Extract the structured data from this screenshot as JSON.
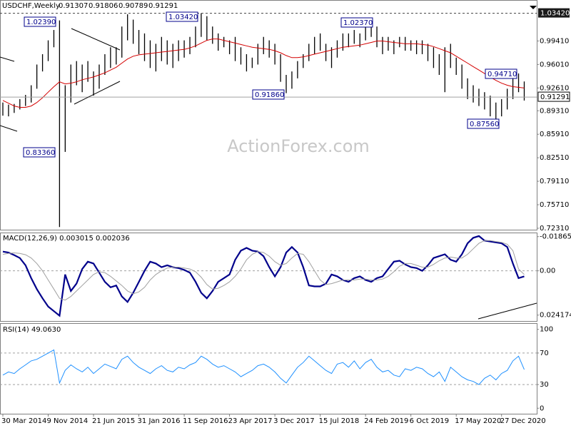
{
  "chart_data": [
    {
      "type": "ohlc",
      "title": "USDCHF,Weekly",
      "ohlc": [
        0.91307,
        0.91806,
        0.90789,
        0.91291
      ],
      "watermark": "ActionForex.com",
      "categories": [
        "30 Mar 2014",
        null,
        null,
        null,
        null,
        null,
        null,
        null,
        "9 Nov 2014",
        null,
        null,
        null,
        null,
        null,
        null,
        null,
        "21 Jun 2015",
        null,
        null,
        null,
        null,
        null,
        null,
        null,
        "31 Jan 2016",
        null,
        null,
        null,
        null,
        null,
        null,
        null,
        "11 Sep 2016",
        null,
        null,
        null,
        null,
        null,
        null,
        null,
        "23 Apr 2017",
        null,
        null,
        null,
        null,
        null,
        null,
        null,
        "3 Dec 2017",
        null,
        null,
        null,
        null,
        null,
        null,
        null,
        "15 Jul 2018",
        null,
        null,
        null,
        null,
        null,
        null,
        null,
        "24 Feb 2019",
        null,
        null,
        null,
        null,
        null,
        null,
        null,
        "6 Oct 2019",
        null,
        null,
        null,
        null,
        null,
        null,
        null,
        "17 May 2020",
        null,
        null,
        null,
        null,
        null,
        null,
        null,
        "27 Dec 2020",
        null,
        null,
        null,
        null
      ],
      "series": [
        {
          "type": "hl",
          "color": "#000000",
          "high": [
            0.905,
            0.902,
            0.903,
            0.91,
            0.916,
            0.93,
            0.96,
            0.975,
            0.995,
            1.01,
            1.0239,
            0.93,
            0.96,
            0.965,
            0.96,
            0.965,
            0.95,
            0.96,
            0.975,
            0.985,
            0.985,
            1.015,
            1.0327,
            1.025,
            1.01,
            1.005,
            0.995,
            0.99,
            1.0,
            0.995,
            0.99,
            0.995,
            0.995,
            1.0,
            1.015,
            1.0342,
            1.03,
            1.015,
            1.005,
            1.0,
            0.995,
            1.0,
            0.985,
            0.975,
            0.97,
            0.99,
            1.0,
            0.995,
            0.99,
            0.975,
            0.945,
            0.95,
            0.965,
            0.975,
            0.99,
            1.0,
            1.005,
            0.99,
            0.985,
            0.995,
            1.005,
            1.005,
            1.01,
            1.005,
            1.015,
            1.0237,
            1.015,
            1.0,
            1.0,
            0.995,
            1.0,
            1.0,
            0.995,
            0.995,
            0.995,
            0.99,
            0.985,
            0.975,
            0.985,
            0.99,
            0.97,
            0.96,
            0.94,
            0.93,
            0.925,
            0.92,
            0.915,
            0.905,
            0.91,
            0.925,
            0.945,
            0.9471,
            0.9355
          ],
          "low": [
            0.886,
            0.885,
            0.89,
            0.895,
            0.9,
            0.905,
            0.925,
            0.95,
            0.965,
            0.985,
            0.7249,
            0.8336,
            0.905,
            0.93,
            0.92,
            0.935,
            0.915,
            0.925,
            0.945,
            0.955,
            0.96,
            0.97,
            0.995,
            0.99,
            0.975,
            0.965,
            0.955,
            0.95,
            0.965,
            0.96,
            0.955,
            0.965,
            0.97,
            0.975,
            0.985,
            1.0,
            0.995,
            0.99,
            0.98,
            0.985,
            0.975,
            0.965,
            0.96,
            0.95,
            0.955,
            0.96,
            0.975,
            0.97,
            0.96,
            0.935,
            0.9186,
            0.925,
            0.94,
            0.955,
            0.965,
            0.975,
            0.98,
            0.965,
            0.955,
            0.97,
            0.98,
            0.985,
            0.99,
            0.985,
            0.995,
            1.0,
            0.985,
            0.975,
            0.98,
            0.975,
            0.985,
            0.98,
            0.98,
            0.975,
            0.975,
            0.965,
            0.955,
            0.945,
            0.92,
            0.955,
            0.945,
            0.925,
            0.91,
            0.905,
            0.9,
            0.895,
            0.885,
            0.8756,
            0.885,
            0.895,
            0.91,
            0.92,
            0.9079
          ]
        },
        {
          "type": "line",
          "color": "#d40000",
          "values": [
            0.908,
            0.904,
            0.9,
            0.898,
            0.898,
            0.9,
            0.905,
            0.912,
            0.92,
            0.928,
            0.935,
            0.932,
            0.933,
            0.935,
            0.938,
            0.94,
            0.942,
            0.945,
            0.948,
            0.952,
            0.956,
            0.962,
            0.968,
            0.972,
            0.974,
            0.975,
            0.976,
            0.977,
            0.978,
            0.979,
            0.98,
            0.981,
            0.982,
            0.984,
            0.987,
            0.991,
            0.995,
            0.997,
            0.997,
            0.995,
            0.993,
            0.991,
            0.989,
            0.987,
            0.985,
            0.984,
            0.983,
            0.982,
            0.98,
            0.977,
            0.973,
            0.97,
            0.97,
            0.971,
            0.973,
            0.975,
            0.977,
            0.979,
            0.981,
            0.983,
            0.985,
            0.986,
            0.987,
            0.988,
            0.99,
            0.992,
            0.994,
            0.994,
            0.993,
            0.992,
            0.991,
            0.99,
            0.99,
            0.99,
            0.989,
            0.988,
            0.986,
            0.983,
            0.98,
            0.977,
            0.972,
            0.967,
            0.962,
            0.957,
            0.952,
            0.947,
            0.942,
            0.937,
            0.933,
            0.93,
            0.928,
            0.927,
            0.926
          ]
        }
      ],
      "annotations": [
        "1.02390",
        "0.83360",
        "1.03420",
        "0.91860",
        "1.02370",
        "0.94710",
        "0.87560"
      ],
      "level": {
        "value": 1.0342,
        "label": "1.03420"
      },
      "last_price": 0.91291,
      "ylim": [
        0.721,
        1.041
      ],
      "yticks": [
        {
          "value": 0.7231,
          "label": "0.72310"
        },
        {
          "value": 0.7571,
          "label": "0.75710"
        },
        {
          "value": 0.7911,
          "label": "0.79110"
        },
        {
          "value": 0.8251,
          "label": "0.82510"
        },
        {
          "value": 0.8591,
          "label": "0.85910"
        },
        {
          "value": 0.8931,
          "label": "0.89310"
        },
        {
          "value": 0.9261,
          "label": "0.92610"
        },
        {
          "value": 0.9601,
          "label": "0.96010"
        },
        {
          "value": 0.9941,
          "label": "0.99410"
        }
      ]
    },
    {
      "type": "line",
      "title": "MACD(12,26,9) 0.003015 0.002036",
      "series": [
        {
          "color": "#00008b",
          "values": [
            -0.0105,
            -0.01,
            -0.0086,
            -0.007,
            -0.003,
            0.004,
            0.01,
            0.015,
            0.0195,
            0.022,
            0.0245,
            0.002,
            0.011,
            0.007,
            -0.001,
            -0.005,
            -0.004,
            0.001,
            0.006,
            0.009,
            0.008,
            0.014,
            0.017,
            0.012,
            0.006,
            0.0,
            -0.005,
            -0.004,
            -0.002,
            -0.003,
            -0.002,
            -0.0015,
            -0.0005,
            0.001,
            0.006,
            0.012,
            0.015,
            0.011,
            0.006,
            0.004,
            0.002,
            -0.006,
            -0.011,
            -0.0125,
            -0.011,
            -0.0105,
            -0.008,
            -0.002,
            0.003,
            -0.002,
            -0.01,
            -0.013,
            -0.01,
            -0.002,
            0.008,
            0.0085,
            0.0085,
            0.007,
            0.002,
            0.003,
            0.005,
            0.006,
            0.004,
            0.003,
            0.005,
            0.006,
            0.004,
            0.003,
            -0.001,
            -0.005,
            -0.0055,
            -0.0035,
            -0.002,
            -0.0015,
            0.0,
            -0.003,
            -0.007,
            -0.008,
            -0.009,
            -0.006,
            -0.005,
            -0.009,
            -0.015,
            -0.018,
            -0.019,
            -0.0165,
            -0.016,
            -0.0155,
            -0.015,
            -0.013,
            -0.004,
            0.004,
            0.003
          ]
        },
        {
          "color": "#a0a0a0",
          "values": [
            -0.009,
            -0.0095,
            -0.0098,
            -0.0095,
            -0.0088,
            -0.007,
            -0.004,
            0.0,
            0.005,
            0.01,
            0.015,
            0.016,
            0.014,
            0.011,
            0.008,
            0.005,
            0.002,
            0.0005,
            0.001,
            0.003,
            0.0055,
            0.008,
            0.011,
            0.0125,
            0.0115,
            0.009,
            0.005,
            0.002,
            0.0,
            -0.0015,
            -0.002,
            -0.002,
            -0.0015,
            -0.001,
            0.0005,
            0.0035,
            0.0075,
            0.01,
            0.0095,
            0.008,
            0.006,
            0.003,
            -0.001,
            -0.006,
            -0.009,
            -0.0105,
            -0.01,
            -0.008,
            -0.005,
            -0.003,
            -0.004,
            -0.007,
            -0.0095,
            -0.009,
            -0.005,
            0.0,
            0.005,
            0.0075,
            0.007,
            0.006,
            0.005,
            0.005,
            0.005,
            0.0045,
            0.0045,
            0.005,
            0.005,
            0.0045,
            0.003,
            0.0005,
            -0.0025,
            -0.004,
            -0.004,
            -0.003,
            -0.002,
            -0.002,
            -0.0035,
            -0.0055,
            -0.007,
            -0.0075,
            -0.007,
            -0.007,
            -0.009,
            -0.012,
            -0.015,
            -0.0165,
            -0.0165,
            -0.016,
            -0.0155,
            -0.0145,
            -0.011,
            -0.001,
            0.002
          ]
        }
      ],
      "ylim": [
        0.027,
        -0.0205
      ],
      "yticks": [
        0.024174,
        {
          "value": 0,
          "label": "0.00"
        },
        -0.018653
      ]
    },
    {
      "type": "line",
      "title": "RSI(14) 49.0630",
      "series": [
        {
          "color": "#1e90ff",
          "values": [
            42,
            46,
            44,
            50,
            55,
            60,
            62,
            66,
            70,
            74,
            32,
            48,
            55,
            50,
            46,
            52,
            44,
            50,
            56,
            53,
            50,
            62,
            66,
            58,
            52,
            48,
            44,
            50,
            54,
            48,
            46,
            52,
            50,
            55,
            58,
            66,
            62,
            56,
            52,
            54,
            50,
            46,
            40,
            44,
            48,
            54,
            56,
            52,
            46,
            38,
            32,
            42,
            52,
            58,
            66,
            60,
            54,
            48,
            44,
            56,
            58,
            52,
            60,
            50,
            58,
            62,
            52,
            46,
            48,
            42,
            40,
            50,
            48,
            52,
            50,
            44,
            40,
            46,
            34,
            52,
            46,
            40,
            36,
            34,
            30,
            38,
            42,
            36,
            44,
            48,
            60,
            66,
            49
          ]
        }
      ],
      "levels": [
        30,
        70
      ],
      "ylim": [
        -7,
        107
      ],
      "yticks": [
        100,
        70,
        30,
        0
      ]
    }
  ]
}
